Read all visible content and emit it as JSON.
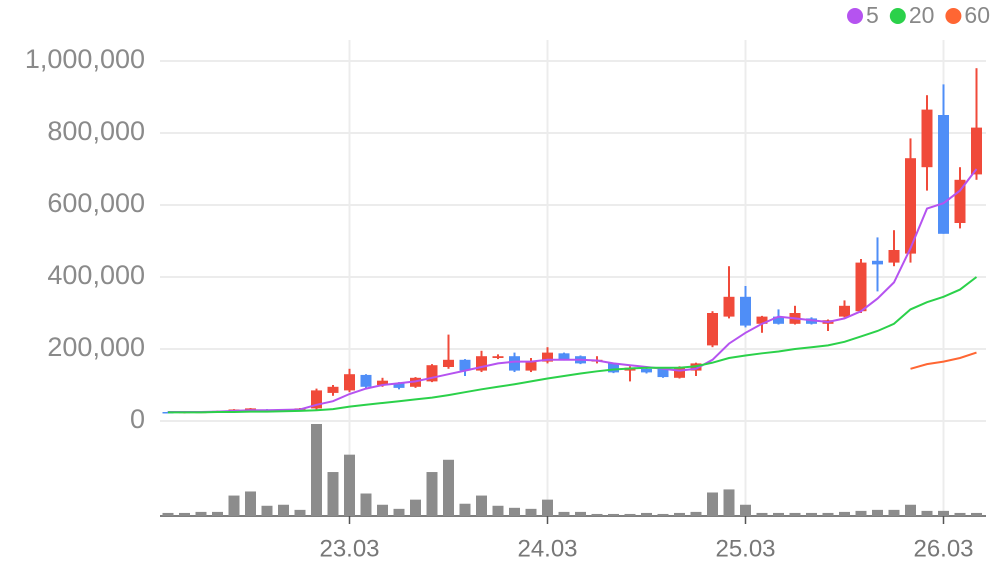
{
  "chart_data": {
    "type": "candlestick",
    "categories": [
      null,
      null,
      null,
      null,
      null,
      null,
      null,
      null,
      null,
      null,
      null,
      "23.03",
      null,
      null,
      null,
      null,
      null,
      null,
      null,
      null,
      null,
      null,
      null,
      "24.03",
      null,
      null,
      null,
      null,
      null,
      null,
      null,
      null,
      null,
      null,
      null,
      "25.03",
      null,
      null,
      null,
      null,
      null,
      null,
      null,
      null,
      null,
      null,
      null,
      "26.03",
      null,
      null
    ],
    "open": [
      25000,
      22000,
      25000,
      25000,
      30000,
      30000,
      32000,
      30000,
      32000,
      35000,
      78000,
      85000,
      128000,
      100000,
      105000,
      95000,
      110000,
      150000,
      170000,
      140000,
      175000,
      180000,
      140000,
      165000,
      188000,
      180000,
      165000,
      160000,
      140000,
      145000,
      145000,
      120000,
      140000,
      210000,
      290000,
      345000,
      270000,
      290000,
      270000,
      285000,
      270000,
      290000,
      305000,
      445000,
      440000,
      465000,
      705000,
      850000,
      550000,
      685000
    ],
    "high": [
      26000,
      27000,
      27000,
      29000,
      33000,
      36000,
      33000,
      33000,
      36000,
      90000,
      100000,
      145000,
      130000,
      120000,
      108000,
      122000,
      158000,
      240000,
      172000,
      195000,
      185000,
      190000,
      175000,
      205000,
      190000,
      182000,
      180000,
      162000,
      152000,
      148000,
      147000,
      152000,
      162000,
      305000,
      430000,
      375000,
      292000,
      310000,
      320000,
      288000,
      282000,
      335000,
      450000,
      510000,
      530000,
      785000,
      905000,
      935000,
      705000,
      980000
    ],
    "low": [
      23000,
      21000,
      23000,
      24000,
      28000,
      28000,
      28000,
      28000,
      30000,
      30000,
      70000,
      80000,
      90000,
      95000,
      88000,
      92000,
      108000,
      145000,
      125000,
      136000,
      172000,
      136000,
      136000,
      160000,
      168000,
      158000,
      160000,
      133000,
      110000,
      132000,
      120000,
      118000,
      125000,
      205000,
      285000,
      260000,
      245000,
      268000,
      268000,
      268000,
      250000,
      288000,
      300000,
      360000,
      430000,
      440000,
      640000,
      520000,
      535000,
      670000
    ],
    "close": [
      24000,
      26000,
      26000,
      28000,
      32000,
      35000,
      29000,
      32000,
      35000,
      85000,
      95000,
      130000,
      95000,
      112000,
      92000,
      120000,
      155000,
      170000,
      140000,
      180000,
      180000,
      140000,
      165000,
      190000,
      170000,
      160000,
      170000,
      135000,
      148000,
      135000,
      122000,
      150000,
      160000,
      300000,
      345000,
      265000,
      290000,
      270000,
      300000,
      270000,
      280000,
      320000,
      440000,
      435000,
      475000,
      730000,
      865000,
      520000,
      670000,
      815000
    ],
    "volume": [
      3,
      3,
      4,
      4,
      20,
      24,
      10,
      11,
      6,
      90,
      43,
      60,
      22,
      11,
      7,
      16,
      43,
      55,
      12,
      20,
      10,
      8,
      7,
      16,
      4,
      4,
      2,
      2,
      2,
      3,
      2,
      3,
      4,
      23,
      26,
      11,
      3,
      3,
      3,
      3,
      3,
      4,
      5,
      6,
      6,
      11,
      5,
      5,
      3,
      3
    ],
    "up_color": "#f04a3a",
    "down_color": "#4f8ef7",
    "volume_color": "#8c8c8c",
    "ylim": [
      0,
      1000000
    ],
    "yticks": [
      0,
      {
        "value": 200000,
        "label": "200,000"
      },
      {
        "value": 400000,
        "label": "400,000"
      },
      {
        "value": 600000,
        "label": "600,000"
      },
      {
        "value": 800000,
        "label": "800,000"
      },
      {
        "value": 1000000,
        "label": "1,000,000"
      }
    ],
    "grid": true,
    "legend": "top-right",
    "series": [
      {
        "name": "5",
        "color": "#b553f0",
        "values": [
          25000,
          25000,
          25000,
          26000,
          28000,
          30000,
          30000,
          31000,
          32000,
          45000,
          55000,
          75000,
          90000,
          100000,
          105000,
          110000,
          120000,
          130000,
          140000,
          150000,
          160000,
          165000,
          165000,
          170000,
          170000,
          170000,
          168000,
          160000,
          155000,
          150000,
          145000,
          140000,
          145000,
          170000,
          215000,
          245000,
          270000,
          290000,
          285000,
          280000,
          275000,
          285000,
          305000,
          340000,
          385000,
          480000,
          590000,
          605000,
          640000,
          700000
        ]
      },
      {
        "name": "20",
        "color": "#2bd14a",
        "values": [
          24000,
          24000,
          24000,
          25000,
          25000,
          26000,
          26000,
          27000,
          28000,
          30000,
          33000,
          40000,
          45000,
          50000,
          55000,
          60000,
          65000,
          72000,
          80000,
          88000,
          95000,
          102000,
          110000,
          118000,
          125000,
          132000,
          138000,
          143000,
          146000,
          148000,
          148000,
          148000,
          152000,
          162000,
          175000,
          182000,
          188000,
          193000,
          200000,
          205000,
          210000,
          220000,
          235000,
          250000,
          270000,
          310000,
          330000,
          345000,
          365000,
          400000
        ]
      },
      {
        "name": "60",
        "color": "#ff6633",
        "values": [
          null,
          null,
          null,
          null,
          null,
          null,
          null,
          null,
          null,
          null,
          null,
          null,
          null,
          null,
          null,
          null,
          null,
          null,
          null,
          null,
          null,
          null,
          null,
          null,
          null,
          null,
          null,
          null,
          null,
          null,
          null,
          null,
          null,
          null,
          null,
          null,
          null,
          null,
          null,
          null,
          null,
          null,
          null,
          null,
          null,
          145000,
          158000,
          165000,
          175000,
          190000
        ]
      }
    ]
  }
}
